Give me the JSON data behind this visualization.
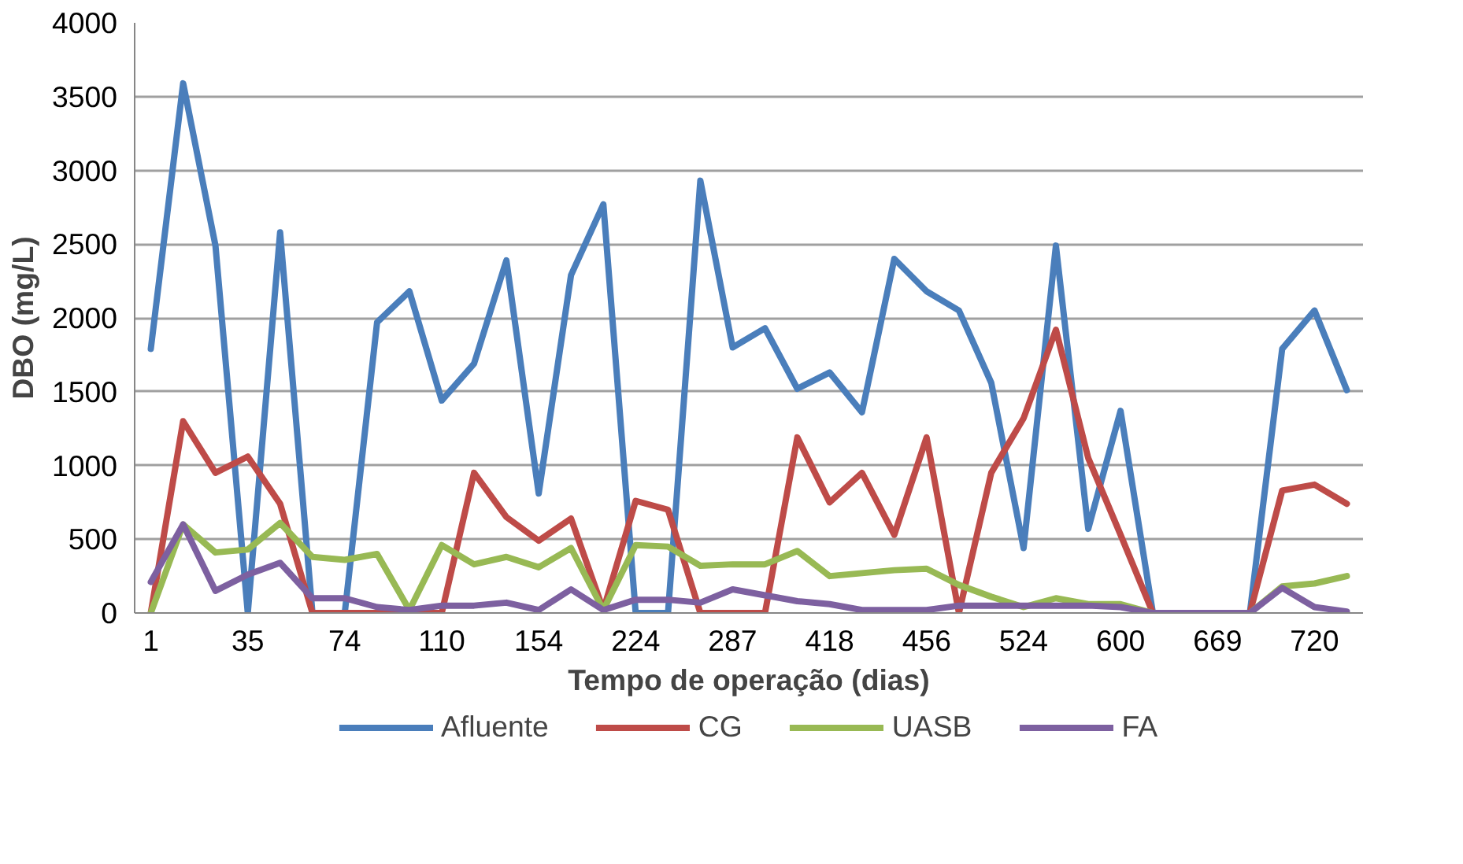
{
  "chart_data": {
    "type": "line",
    "xlabel": "Tempo de operação (dias)",
    "ylabel": "DBO (mg/L)",
    "categories": [
      "1",
      null,
      null,
      "35",
      null,
      null,
      "74",
      null,
      null,
      "110",
      null,
      null,
      "154",
      null,
      null,
      "224",
      null,
      null,
      "287",
      null,
      null,
      "418",
      null,
      null,
      "456",
      null,
      null,
      "524",
      null,
      null,
      "600",
      null,
      null,
      "669",
      null,
      null,
      "720",
      null
    ],
    "series": [
      {
        "name": "Afluente",
        "color": "#4a7ebb",
        "values": [
          1790,
          3590,
          2490,
          0,
          2580,
          0,
          0,
          1970,
          2180,
          1440,
          1690,
          2390,
          810,
          2290,
          2770,
          0,
          0,
          2930,
          1800,
          1930,
          1520,
          1630,
          1360,
          2400,
          2180,
          2050,
          1560,
          440,
          2490,
          570,
          1370,
          0,
          0,
          0,
          0,
          1790,
          2050,
          1510
        ]
      },
      {
        "name": "CG",
        "color": "#be4b48",
        "values": [
          0,
          1300,
          950,
          1060,
          740,
          0,
          0,
          0,
          0,
          0,
          950,
          650,
          490,
          640,
          20,
          760,
          700,
          0,
          0,
          0,
          1190,
          750,
          950,
          530,
          1190,
          0,
          950,
          1320,
          1920,
          1050,
          530,
          0,
          0,
          0,
          0,
          830,
          870,
          740
        ]
      },
      {
        "name": "UASB",
        "color": "#98b954",
        "values": [
          0,
          600,
          410,
          430,
          610,
          380,
          360,
          400,
          20,
          460,
          330,
          380,
          310,
          440,
          20,
          460,
          450,
          320,
          330,
          330,
          420,
          250,
          270,
          290,
          300,
          190,
          110,
          40,
          100,
          60,
          60,
          0,
          0,
          0,
          0,
          180,
          200,
          250
        ]
      },
      {
        "name": "FA",
        "color": "#7d60a0",
        "values": [
          210,
          600,
          150,
          260,
          340,
          100,
          100,
          40,
          20,
          50,
          50,
          70,
          20,
          160,
          20,
          90,
          90,
          70,
          160,
          120,
          80,
          60,
          20,
          20,
          20,
          50,
          50,
          50,
          50,
          50,
          40,
          0,
          0,
          0,
          0,
          170,
          40,
          10
        ]
      }
    ],
    "ylim": [
      0,
      4000
    ],
    "yticks": [
      0,
      500,
      1000,
      1500,
      2000,
      2500,
      3000,
      3500,
      4000
    ],
    "grid": "y",
    "legend": "bottom",
    "marker": "none",
    "line_style": "solid"
  }
}
